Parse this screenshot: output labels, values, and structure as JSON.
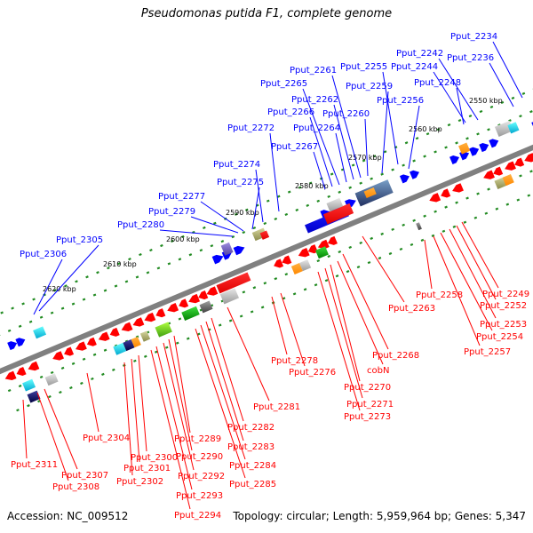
{
  "title": "Pseudomonas putida F1, complete genome",
  "footer": {
    "accession": "Accession: NC_009512",
    "summary": "Topology: circular; Length: 5,959,964 bp; Genes: 5,347"
  },
  "colors": {
    "forward_strand": "#0000ff",
    "reverse_strand": "#ff0000",
    "backbone": "#808080",
    "tick": "#228b22"
  },
  "kbp_labels": [
    "2550 kbp",
    "2560 kbp",
    "2570 kbp",
    "2580 kbp",
    "2590 kbp",
    "2600 kbp",
    "2610 kbp",
    "2620 kbp"
  ],
  "forward_genes": [
    "Pput_2234",
    "Pput_2236",
    "Pput_2242",
    "Pput_2244",
    "Pput_2248",
    "Pput_2255",
    "Pput_2256",
    "Pput_2259",
    "Pput_2260",
    "Pput_2261",
    "Pput_2262",
    "Pput_2264",
    "Pput_2265",
    "Pput_2266",
    "Pput_2267",
    "Pput_2272",
    "Pput_2274",
    "Pput_2275",
    "Pput_2277",
    "Pput_2279",
    "Pput_2280",
    "Pput_2305",
    "Pput_2306"
  ],
  "reverse_genes": [
    "Pput_2249",
    "Pput_2252",
    "Pput_2253",
    "Pput_2254",
    "Pput_2257",
    "Pput_2258",
    "Pput_2263",
    "Pput_2268",
    "cobN",
    "Pput_2270",
    "Pput_2271",
    "Pput_2273",
    "Pput_2276",
    "Pput_2278",
    "Pput_2281",
    "Pput_2282",
    "Pput_2283",
    "Pput_2284",
    "Pput_2285",
    "Pput_2289",
    "Pput_2290",
    "Pput_2292",
    "Pput_2293",
    "Pput_2294",
    "Pput_2300",
    "Pput_2301",
    "Pput_2302",
    "Pput_2304",
    "Pput_2307",
    "Pput_2308",
    "Pput_2311"
  ]
}
